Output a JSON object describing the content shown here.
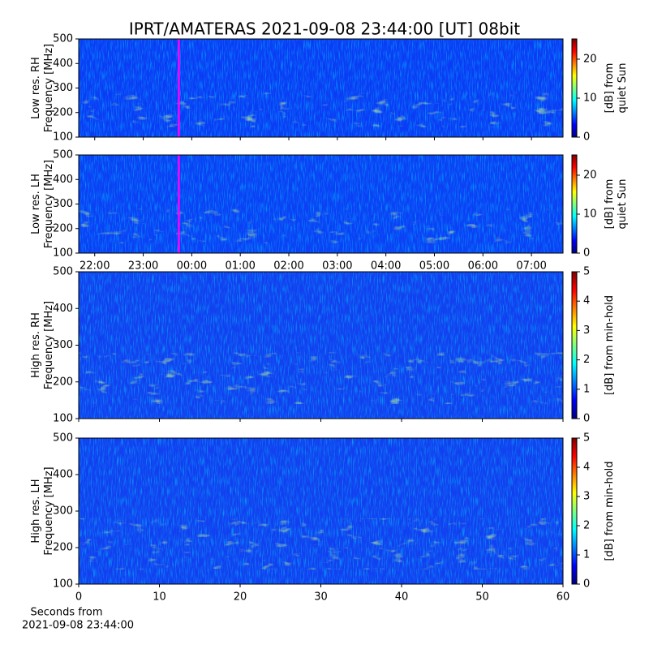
{
  "title": "IPRT/AMATERAS 2021-09-08 23:44:00 [UT]   08bit",
  "colormap": [
    "#00007f",
    "#0000ff",
    "#007fff",
    "#00ffff",
    "#7fff7f",
    "#ffff00",
    "#ff7f00",
    "#ff0000",
    "#7f0000"
  ],
  "chart_data": [
    {
      "type": "heatmap",
      "ylabel": [
        "Low res. RH",
        "Frequency [MHz]"
      ],
      "ylim": [
        100,
        500
      ],
      "yticks": [
        100,
        200,
        300,
        400,
        500
      ],
      "xlim": [
        21.67,
        31.65
      ],
      "xticks": [
        22,
        23,
        24,
        25,
        26,
        27,
        28,
        29,
        30,
        31
      ],
      "xtick_labels": false,
      "clabel": [
        "[dB] from",
        "quiet Sun"
      ],
      "clim": [
        0,
        25.2
      ],
      "cticks": [
        0,
        10,
        20
      ],
      "background": "#0b3cf5",
      "marker": {
        "x": 23.733,
        "color": "#ff00ff"
      }
    },
    {
      "type": "heatmap",
      "ylabel": [
        "Low res. LH",
        "Frequency [MHz]"
      ],
      "ylim": [
        100,
        500
      ],
      "yticks": [
        100,
        200,
        300,
        400,
        500
      ],
      "xlim": [
        21.67,
        31.65
      ],
      "xticks": [
        {
          "value": 22,
          "label": "22:00"
        },
        {
          "value": 23,
          "label": "23:00"
        },
        {
          "value": 24,
          "label": "00:00"
        },
        {
          "value": 25,
          "label": "01:00"
        },
        {
          "value": 26,
          "label": "02:00"
        },
        {
          "value": 27,
          "label": "03:00"
        },
        {
          "value": 28,
          "label": "04:00"
        },
        {
          "value": 29,
          "label": "05:00"
        },
        {
          "value": 30,
          "label": "06:00"
        },
        {
          "value": 31,
          "label": "07:00"
        }
      ],
      "clabel": [
        "[dB] from",
        "quiet Sun"
      ],
      "clim": [
        0,
        25.2
      ],
      "cticks": [
        0,
        10,
        20
      ],
      "background": "#0b40f5",
      "marker": {
        "x": 23.733,
        "color": "#ff00ff"
      }
    },
    {
      "type": "heatmap",
      "ylabel": [
        "High res. RH",
        "Frequency [MHz]"
      ],
      "ylim": [
        100,
        500
      ],
      "yticks": [
        100,
        200,
        300,
        400,
        500
      ],
      "xlim": [
        0,
        60
      ],
      "xticks": [
        0,
        10,
        20,
        30,
        40,
        50,
        60
      ],
      "xtick_labels": false,
      "clabel": [
        "[dB] from min-hold"
      ],
      "clim": [
        0,
        5
      ],
      "cticks": [
        0,
        1,
        2,
        3,
        4,
        5
      ],
      "background": "#1240f0"
    },
    {
      "type": "heatmap",
      "ylabel": [
        "High res. LH",
        "Frequency [MHz]"
      ],
      "ylim": [
        100,
        500
      ],
      "yticks": [
        100,
        200,
        300,
        400,
        500
      ],
      "xlim": [
        0,
        60
      ],
      "xticks": [
        0,
        10,
        20,
        30,
        40,
        50,
        60
      ],
      "xlabel": [
        "Seconds from",
        "2021-09-08 23:44:00"
      ],
      "clabel": [
        "[dB] from min-hold"
      ],
      "clim": [
        0,
        5
      ],
      "cticks": [
        0,
        1,
        2,
        3,
        4,
        5
      ],
      "background": "#1240f0"
    }
  ]
}
